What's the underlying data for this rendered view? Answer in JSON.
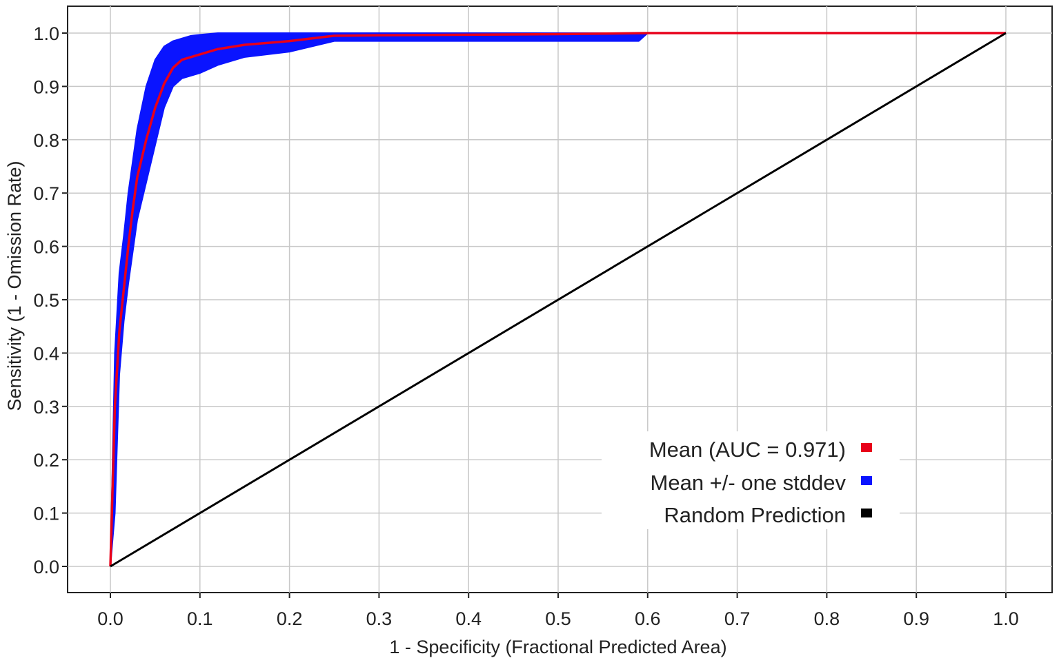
{
  "chart_data": {
    "type": "line",
    "title": "",
    "xlabel": "1 - Specificity (Fractional Predicted Area)",
    "ylabel": "Sensitivity (1 - Omission Rate)",
    "xlim": [
      0,
      1
    ],
    "ylim": [
      0,
      1
    ],
    "x_ticks": [
      "0.0",
      "0.1",
      "0.2",
      "0.3",
      "0.4",
      "0.5",
      "0.6",
      "0.7",
      "0.8",
      "0.9",
      "1.0"
    ],
    "y_ticks": [
      "0.0",
      "0.1",
      "0.2",
      "0.3",
      "0.4",
      "0.5",
      "0.6",
      "0.7",
      "0.8",
      "0.9",
      "1.0"
    ],
    "grid": true,
    "legend_position": "bottom-right",
    "series": [
      {
        "name": "Mean (AUC = 0.971)",
        "kind": "line",
        "color": "#e8001a",
        "x": [
          0.0,
          0.005,
          0.01,
          0.015,
          0.02,
          0.025,
          0.03,
          0.04,
          0.05,
          0.06,
          0.07,
          0.08,
          0.09,
          0.1,
          0.12,
          0.15,
          0.2,
          0.25,
          0.3,
          0.4,
          0.5,
          0.6,
          1.0
        ],
        "y": [
          0.0,
          0.3,
          0.44,
          0.52,
          0.6,
          0.67,
          0.73,
          0.8,
          0.86,
          0.905,
          0.935,
          0.95,
          0.955,
          0.96,
          0.97,
          0.978,
          0.985,
          0.995,
          0.996,
          0.997,
          0.998,
          1.0,
          1.0
        ]
      },
      {
        "name": "Mean +/- one stddev",
        "kind": "band",
        "color": "#0a14ff",
        "x": [
          0.0,
          0.005,
          0.01,
          0.015,
          0.02,
          0.025,
          0.03,
          0.04,
          0.05,
          0.06,
          0.07,
          0.08,
          0.09,
          0.1,
          0.12,
          0.15,
          0.2,
          0.25,
          0.3,
          0.4,
          0.5,
          0.59,
          0.6,
          1.0
        ],
        "lower": [
          0.0,
          0.1,
          0.36,
          0.46,
          0.53,
          0.59,
          0.65,
          0.72,
          0.79,
          0.86,
          0.9,
          0.915,
          0.92,
          0.925,
          0.94,
          0.955,
          0.965,
          0.985,
          0.985,
          0.985,
          0.985,
          0.985,
          1.0,
          1.0
        ],
        "upper": [
          0.0,
          0.4,
          0.55,
          0.62,
          0.7,
          0.76,
          0.82,
          0.9,
          0.95,
          0.975,
          0.985,
          0.99,
          0.995,
          0.997,
          1.0,
          1.0,
          1.0,
          1.0,
          1.0,
          1.0,
          1.0,
          1.0,
          1.0,
          1.0
        ]
      },
      {
        "name": "Random Prediction",
        "kind": "line",
        "color": "#000000",
        "x": [
          0.0,
          1.0
        ],
        "y": [
          0.0,
          1.0
        ]
      }
    ]
  }
}
